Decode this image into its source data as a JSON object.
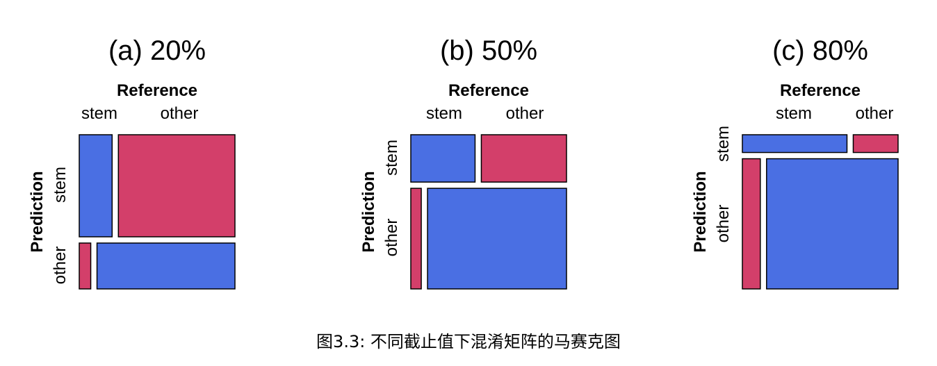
{
  "caption": "图3.3: 不同截止值下混淆矩阵的马赛克图",
  "colors": {
    "correct": "#4a6fe3",
    "incorrect": "#d33f6a"
  },
  "chart_data": [
    {
      "type": "mosaic",
      "title": "(a) 20%",
      "xlabel": "Reference",
      "ylabel": "Prediction",
      "x_categories": [
        "stem",
        "other"
      ],
      "y_categories": [
        "stem",
        "other"
      ],
      "column_proportions": [
        0.22,
        0.78
      ],
      "row_proportions": [
        [
          0.69,
          0.31
        ],
        [
          0.3,
          0.7
        ]
      ],
      "fill": [
        [
          "correct",
          "incorrect"
        ],
        [
          "incorrect",
          "correct"
        ]
      ]
    },
    {
      "type": "mosaic",
      "title": "(b) 50%",
      "xlabel": "Reference",
      "ylabel": "Prediction",
      "x_categories": [
        "stem",
        "other"
      ],
      "y_categories": [
        "stem",
        "other"
      ],
      "row_proportions": [
        0.32,
        0.68
      ],
      "column_proportions": [
        [
          0.43,
          0.57
        ],
        [
          0.07,
          0.93
        ]
      ],
      "fill": [
        [
          "correct",
          "incorrect"
        ],
        [
          "incorrect",
          "correct"
        ]
      ]
    },
    {
      "type": "mosaic",
      "title": "(c) 80%",
      "xlabel": "Reference",
      "ylabel": "Prediction",
      "x_categories": [
        "stem",
        "other"
      ],
      "y_categories": [
        "stem",
        "other"
      ],
      "row_proportions": [
        0.12,
        0.88
      ],
      "column_proportions": [
        [
          0.7,
          0.3
        ],
        [
          0.12,
          0.88
        ]
      ],
      "fill": [
        [
          "correct",
          "incorrect"
        ],
        [
          "incorrect",
          "correct"
        ]
      ]
    }
  ]
}
